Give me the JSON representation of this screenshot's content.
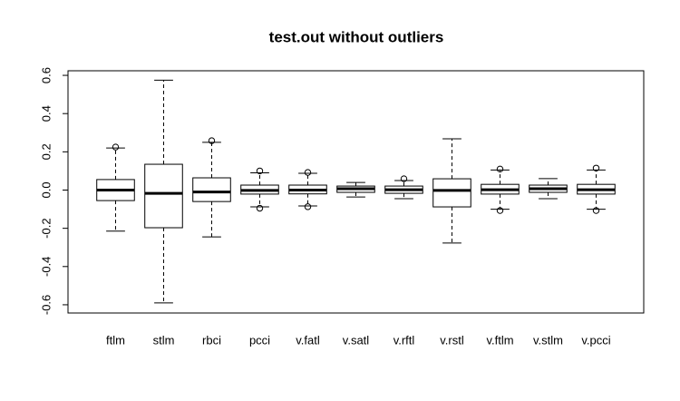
{
  "chart_data": {
    "type": "box",
    "title": "test.out  without outliers",
    "categories": [
      "ftlm",
      "stlm",
      "rbci",
      "pcci",
      "v.fatl",
      "v.satl",
      "v.rftl",
      "v.rstl",
      "v.ftlm",
      "v.stlm",
      "v.pcci"
    ],
    "boxes": [
      {
        "min": -0.215,
        "q1": -0.055,
        "median": 0.0,
        "q3": 0.055,
        "max": 0.22,
        "outliers": [
          0.225
        ]
      },
      {
        "min": -0.59,
        "q1": -0.197,
        "median": -0.017,
        "q3": 0.135,
        "max": 0.575,
        "outliers": []
      },
      {
        "min": -0.245,
        "q1": -0.06,
        "median": -0.01,
        "q3": 0.064,
        "max": 0.25,
        "outliers": [
          0.258
        ]
      },
      {
        "min": -0.088,
        "q1": -0.021,
        "median": -0.002,
        "q3": 0.026,
        "max": 0.09,
        "outliers": [
          0.1,
          -0.095
        ]
      },
      {
        "min": -0.083,
        "q1": -0.02,
        "median": 0.0,
        "q3": 0.026,
        "max": 0.088,
        "outliers": [
          0.092,
          -0.087
        ]
      },
      {
        "min": -0.036,
        "q1": -0.012,
        "median": 0.007,
        "q3": 0.021,
        "max": 0.04,
        "outliers": []
      },
      {
        "min": -0.045,
        "q1": -0.017,
        "median": 0.002,
        "q3": 0.021,
        "max": 0.05,
        "outliers": [
          0.059
        ]
      },
      {
        "min": -0.277,
        "q1": -0.088,
        "median": -0.002,
        "q3": 0.059,
        "max": 0.268,
        "outliers": []
      },
      {
        "min": -0.1,
        "q1": -0.021,
        "median": 0.002,
        "q3": 0.03,
        "max": 0.105,
        "outliers": [
          0.11,
          -0.107
        ]
      },
      {
        "min": -0.045,
        "q1": -0.012,
        "median": 0.007,
        "q3": 0.026,
        "max": 0.06,
        "outliers": []
      },
      {
        "min": -0.1,
        "q1": -0.021,
        "median": 0.002,
        "q3": 0.03,
        "max": 0.105,
        "outliers": [
          0.115,
          -0.107
        ]
      }
    ],
    "color": "#ffffff",
    "ylim": [
      -0.643,
      0.624
    ],
    "yticks": [
      -0.6,
      -0.4,
      -0.2,
      {
        "value": 0,
        "label": "0.0"
      },
      0.2,
      0.4,
      0.6
    ]
  }
}
